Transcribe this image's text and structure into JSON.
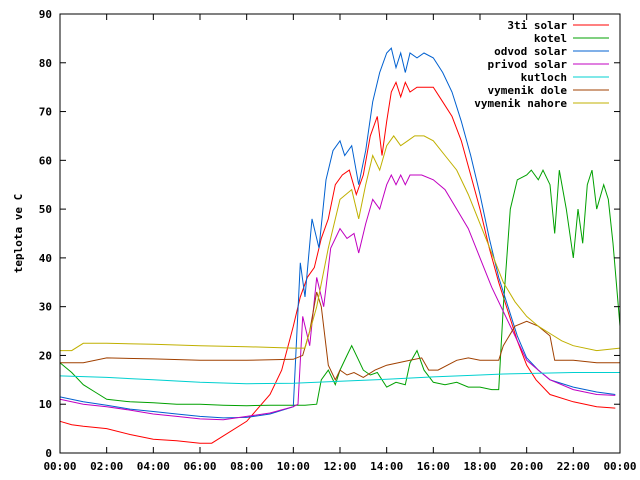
{
  "chart_data": {
    "type": "line",
    "title": "",
    "xlabel": "",
    "ylabel": "teplota ve C",
    "xlim": [
      0,
      24
    ],
    "ylim": [
      0,
      90
    ],
    "x_ticks": [
      {
        "value": 0,
        "label": "00:00"
      },
      {
        "value": 2,
        "label": "02:00"
      },
      {
        "value": 4,
        "label": "04:00"
      },
      {
        "value": 6,
        "label": "06:00"
      },
      {
        "value": 8,
        "label": "08:00"
      },
      {
        "value": 10,
        "label": "10:00"
      },
      {
        "value": 12,
        "label": "12:00"
      },
      {
        "value": 14,
        "label": "14:00"
      },
      {
        "value": 16,
        "label": "16:00"
      },
      {
        "value": 18,
        "label": "18:00"
      },
      {
        "value": 20,
        "label": "20:00"
      },
      {
        "value": 22,
        "label": "22:00"
      },
      {
        "value": 24,
        "label": "00:00"
      }
    ],
    "y_ticks": [
      {
        "value": 0,
        "label": "0"
      },
      {
        "value": 10,
        "label": "10"
      },
      {
        "value": 20,
        "label": "20"
      },
      {
        "value": 30,
        "label": "30"
      },
      {
        "value": 40,
        "label": "40"
      },
      {
        "value": 50,
        "label": "50"
      },
      {
        "value": 60,
        "label": "60"
      },
      {
        "value": 70,
        "label": "70"
      },
      {
        "value": 80,
        "label": "80"
      },
      {
        "value": 90,
        "label": "90"
      }
    ],
    "grid": false,
    "legend_position": "top-right",
    "series": [
      {
        "name": "3ti solar",
        "color": "#ff0000",
        "points": [
          [
            0,
            6.5
          ],
          [
            0.5,
            5.8
          ],
          [
            1,
            5.5
          ],
          [
            2,
            5
          ],
          [
            3,
            3.8
          ],
          [
            4,
            2.8
          ],
          [
            5,
            2.5
          ],
          [
            6,
            2
          ],
          [
            6.5,
            2
          ],
          [
            7,
            3.5
          ],
          [
            8,
            6.5
          ],
          [
            9,
            12
          ],
          [
            9.5,
            17
          ],
          [
            10,
            26
          ],
          [
            10.3,
            32
          ],
          [
            10.6,
            36
          ],
          [
            10.9,
            38
          ],
          [
            11.2,
            44
          ],
          [
            11.5,
            48
          ],
          [
            11.8,
            55
          ],
          [
            12.1,
            57
          ],
          [
            12.4,
            58
          ],
          [
            12.7,
            53
          ],
          [
            13,
            57
          ],
          [
            13.3,
            65
          ],
          [
            13.6,
            69
          ],
          [
            13.8,
            61
          ],
          [
            14,
            68
          ],
          [
            14.2,
            74
          ],
          [
            14.4,
            76
          ],
          [
            14.6,
            73
          ],
          [
            14.8,
            76
          ],
          [
            15,
            74
          ],
          [
            15.3,
            75
          ],
          [
            15.6,
            75
          ],
          [
            16,
            75
          ],
          [
            16.4,
            72
          ],
          [
            16.8,
            69
          ],
          [
            17.2,
            64
          ],
          [
            17.6,
            57
          ],
          [
            18,
            50
          ],
          [
            18.4,
            42
          ],
          [
            18.8,
            35
          ],
          [
            19.2,
            29
          ],
          [
            19.6,
            23
          ],
          [
            20,
            18
          ],
          [
            20.4,
            15
          ],
          [
            21,
            12
          ],
          [
            22,
            10.5
          ],
          [
            23,
            9.5
          ],
          [
            23.8,
            9.2
          ]
        ]
      },
      {
        "name": "kotel",
        "color": "#00a000",
        "points": [
          [
            0,
            18.5
          ],
          [
            0.5,
            16.5
          ],
          [
            1,
            14
          ],
          [
            1.5,
            12.5
          ],
          [
            2,
            11
          ],
          [
            3,
            10.5
          ],
          [
            4,
            10.3
          ],
          [
            5,
            10
          ],
          [
            6,
            10
          ],
          [
            7,
            9.8
          ],
          [
            8,
            9.7
          ],
          [
            9,
            9.8
          ],
          [
            10,
            9.8
          ],
          [
            10.5,
            9.8
          ],
          [
            11,
            10
          ],
          [
            11.2,
            15
          ],
          [
            11.5,
            17
          ],
          [
            11.8,
            14
          ],
          [
            12,
            17
          ],
          [
            12.3,
            20
          ],
          [
            12.5,
            22
          ],
          [
            12.8,
            19
          ],
          [
            13,
            17
          ],
          [
            13.3,
            16
          ],
          [
            13.6,
            16.5
          ],
          [
            14,
            13.5
          ],
          [
            14.4,
            14.5
          ],
          [
            14.8,
            14
          ],
          [
            15,
            18.5
          ],
          [
            15.3,
            21
          ],
          [
            15.6,
            17
          ],
          [
            16,
            14.5
          ],
          [
            16.5,
            14
          ],
          [
            17,
            14.5
          ],
          [
            17.5,
            13.5
          ],
          [
            18,
            13.5
          ],
          [
            18.5,
            13
          ],
          [
            18.8,
            13
          ],
          [
            19,
            30
          ],
          [
            19.3,
            50
          ],
          [
            19.6,
            56
          ],
          [
            20,
            57
          ],
          [
            20.2,
            58
          ],
          [
            20.5,
            56
          ],
          [
            20.7,
            58
          ],
          [
            21,
            55
          ],
          [
            21.2,
            45
          ],
          [
            21.4,
            58
          ],
          [
            21.7,
            50
          ],
          [
            22,
            40
          ],
          [
            22.2,
            50
          ],
          [
            22.4,
            43
          ],
          [
            22.6,
            55
          ],
          [
            22.8,
            58
          ],
          [
            23,
            50
          ],
          [
            23.3,
            55
          ],
          [
            23.5,
            52
          ],
          [
            23.7,
            43
          ],
          [
            24,
            26
          ]
        ]
      },
      {
        "name": "odvod solar",
        "color": "#0060d0",
        "points": [
          [
            0,
            11.5
          ],
          [
            1,
            10.5
          ],
          [
            2,
            9.8
          ],
          [
            3,
            9
          ],
          [
            4,
            8.5
          ],
          [
            5,
            8
          ],
          [
            6,
            7.5
          ],
          [
            7,
            7.2
          ],
          [
            8,
            7.3
          ],
          [
            9,
            8
          ],
          [
            10,
            9.5
          ],
          [
            10.3,
            39
          ],
          [
            10.5,
            32
          ],
          [
            10.8,
            48
          ],
          [
            11.1,
            42
          ],
          [
            11.4,
            56
          ],
          [
            11.7,
            62
          ],
          [
            12,
            64
          ],
          [
            12.2,
            61
          ],
          [
            12.5,
            63
          ],
          [
            12.8,
            55
          ],
          [
            13.1,
            62
          ],
          [
            13.4,
            72
          ],
          [
            13.7,
            78
          ],
          [
            14,
            82
          ],
          [
            14.2,
            83
          ],
          [
            14.4,
            79
          ],
          [
            14.6,
            82
          ],
          [
            14.8,
            78
          ],
          [
            15,
            82
          ],
          [
            15.3,
            81
          ],
          [
            15.6,
            82
          ],
          [
            16,
            81
          ],
          [
            16.4,
            78
          ],
          [
            16.8,
            74
          ],
          [
            17.2,
            68
          ],
          [
            17.6,
            61
          ],
          [
            18,
            53
          ],
          [
            18.4,
            44
          ],
          [
            18.8,
            36
          ],
          [
            19.2,
            30
          ],
          [
            19.6,
            24
          ],
          [
            20,
            19.5
          ],
          [
            20.5,
            17
          ],
          [
            21,
            15
          ],
          [
            22,
            13.5
          ],
          [
            23,
            12.5
          ],
          [
            23.8,
            12
          ]
        ]
      },
      {
        "name": "privod solar",
        "color": "#c000c0",
        "points": [
          [
            0,
            11
          ],
          [
            1,
            10
          ],
          [
            2,
            9.5
          ],
          [
            3,
            8.8
          ],
          [
            4,
            8
          ],
          [
            5,
            7.5
          ],
          [
            6,
            7
          ],
          [
            7,
            6.8
          ],
          [
            8,
            7.5
          ],
          [
            9,
            8.2
          ],
          [
            10,
            9.5
          ],
          [
            10.2,
            10
          ],
          [
            10.4,
            28
          ],
          [
            10.7,
            22
          ],
          [
            11,
            36
          ],
          [
            11.3,
            30
          ],
          [
            11.6,
            42
          ],
          [
            12,
            46
          ],
          [
            12.3,
            44
          ],
          [
            12.6,
            45
          ],
          [
            12.8,
            41
          ],
          [
            13.1,
            47
          ],
          [
            13.4,
            52
          ],
          [
            13.7,
            50
          ],
          [
            14,
            55
          ],
          [
            14.2,
            57
          ],
          [
            14.4,
            55
          ],
          [
            14.6,
            57
          ],
          [
            14.8,
            55
          ],
          [
            15,
            57
          ],
          [
            15.5,
            57
          ],
          [
            16,
            56
          ],
          [
            16.5,
            54
          ],
          [
            17,
            50
          ],
          [
            17.5,
            46
          ],
          [
            18,
            40
          ],
          [
            18.5,
            34
          ],
          [
            19,
            29
          ],
          [
            19.5,
            24
          ],
          [
            20,
            19
          ],
          [
            20.5,
            17
          ],
          [
            21,
            15
          ],
          [
            22,
            13
          ],
          [
            23,
            12
          ],
          [
            23.8,
            11.8
          ]
        ]
      },
      {
        "name": "kutloch",
        "color": "#00d0d0",
        "points": [
          [
            0,
            15.8
          ],
          [
            2,
            15.5
          ],
          [
            4,
            15
          ],
          [
            6,
            14.5
          ],
          [
            8,
            14.2
          ],
          [
            10,
            14.3
          ],
          [
            12,
            14.7
          ],
          [
            14,
            15.1
          ],
          [
            16,
            15.6
          ],
          [
            18,
            16
          ],
          [
            19,
            16.2
          ],
          [
            20,
            16.3
          ],
          [
            22,
            16.5
          ],
          [
            24,
            16.5
          ]
        ]
      },
      {
        "name": "vymenik dole",
        "color": "#a04000",
        "points": [
          [
            0,
            18.5
          ],
          [
            1,
            18.5
          ],
          [
            2,
            19.5
          ],
          [
            4,
            19.3
          ],
          [
            6,
            19
          ],
          [
            8,
            19
          ],
          [
            10,
            19.2
          ],
          [
            10.4,
            20
          ],
          [
            10.7,
            25
          ],
          [
            11,
            33
          ],
          [
            11.2,
            30
          ],
          [
            11.5,
            18
          ],
          [
            11.8,
            15
          ],
          [
            12,
            17
          ],
          [
            12.3,
            16
          ],
          [
            12.6,
            16.5
          ],
          [
            13,
            15.5
          ],
          [
            13.5,
            17
          ],
          [
            14,
            18
          ],
          [
            15,
            19
          ],
          [
            15.5,
            19.5
          ],
          [
            15.8,
            17
          ],
          [
            16.2,
            17
          ],
          [
            17,
            19
          ],
          [
            17.5,
            19.5
          ],
          [
            18,
            19
          ],
          [
            18.8,
            19
          ],
          [
            19,
            22
          ],
          [
            19.5,
            26
          ],
          [
            20,
            27
          ],
          [
            20.5,
            26
          ],
          [
            21,
            24
          ],
          [
            21.2,
            19
          ],
          [
            22,
            19
          ],
          [
            23,
            18.5
          ],
          [
            24,
            18.5
          ]
        ]
      },
      {
        "name": "vymenik nahore",
        "color": "#c0b000",
        "points": [
          [
            0,
            21
          ],
          [
            0.5,
            21
          ],
          [
            1,
            22.5
          ],
          [
            2,
            22.5
          ],
          [
            4,
            22.3
          ],
          [
            6,
            22
          ],
          [
            8,
            21.8
          ],
          [
            10,
            21.5
          ],
          [
            10.5,
            21.5
          ],
          [
            11,
            30
          ],
          [
            11.5,
            42
          ],
          [
            12,
            52
          ],
          [
            12.5,
            54
          ],
          [
            12.8,
            48
          ],
          [
            13.1,
            55
          ],
          [
            13.4,
            61
          ],
          [
            13.7,
            58
          ],
          [
            14,
            63
          ],
          [
            14.3,
            65
          ],
          [
            14.6,
            63
          ],
          [
            14.9,
            64
          ],
          [
            15.2,
            65
          ],
          [
            15.6,
            65
          ],
          [
            16,
            64
          ],
          [
            16.5,
            61
          ],
          [
            17,
            58
          ],
          [
            17.5,
            53
          ],
          [
            18,
            47
          ],
          [
            18.5,
            41
          ],
          [
            19,
            35
          ],
          [
            19.5,
            31
          ],
          [
            20,
            28
          ],
          [
            20.5,
            26
          ],
          [
            21,
            24.5
          ],
          [
            21.5,
            23
          ],
          [
            22,
            22
          ],
          [
            23,
            21
          ],
          [
            24,
            21.5
          ]
        ]
      }
    ]
  }
}
